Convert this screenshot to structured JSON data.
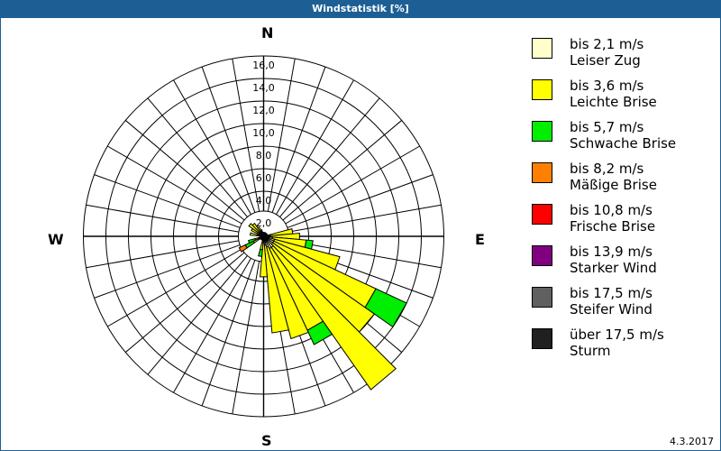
{
  "window": {
    "title": "Windstatistik [%]"
  },
  "footer": {
    "date": "4.3.2017"
  },
  "compass": {
    "north": "N",
    "east": "E",
    "south": "S",
    "west": "W"
  },
  "legend": [
    {
      "range": "bis 2,1 m/s",
      "name": "Leiser Zug",
      "color": "#ffffcc"
    },
    {
      "range": "bis 3,6 m/s",
      "name": "Leichte Brise",
      "color": "#ffff00"
    },
    {
      "range": "bis 5,7 m/s",
      "name": "Schwache Brise",
      "color": "#00ee00"
    },
    {
      "range": "bis 8,2 m/s",
      "name": "Mäßige Brise",
      "color": "#ff8000"
    },
    {
      "range": "bis 10,8 m/s",
      "name": "Frische Brise",
      "color": "#ff0000"
    },
    {
      "range": "bis 13,9 m/s",
      "name": "Starker Wind",
      "color": "#800080"
    },
    {
      "range": "bis 17,5 m/s",
      "name": "Steifer Wind",
      "color": "#606060"
    },
    {
      "range": "über 17,5 m/s",
      "name": "Sturm",
      "color": "#202020"
    }
  ],
  "chart_data": {
    "type": "windrose",
    "title": "Windstatistik [%]",
    "radial_ticks": [
      "2,0",
      "4,0",
      "6,0",
      "8,0",
      "10,0",
      "12,0",
      "14,0",
      "16,0"
    ],
    "rmax": 16,
    "sector_width_deg": 10,
    "speed_classes": [
      "bis 2,1 m/s",
      "bis 3,6 m/s",
      "bis 5,7 m/s",
      "bis 8,2 m/s",
      "bis 10,8 m/s",
      "bis 13,9 m/s",
      "bis 17,5 m/s",
      "über 17,5 m/s"
    ],
    "sectors": [
      {
        "dir": 80,
        "values": [
          0.6,
          2.0,
          0.0
        ]
      },
      {
        "dir": 90,
        "values": [
          0.6,
          2.6,
          0.0
        ]
      },
      {
        "dir": 100,
        "values": [
          0.8,
          3.0,
          0.6
        ]
      },
      {
        "dir": 110,
        "values": [
          1.0,
          6.0,
          0.0
        ]
      },
      {
        "dir": 120,
        "values": [
          1.0,
          10.0,
          3.0
        ]
      },
      {
        "dir": 130,
        "values": [
          1.0,
          11.0,
          0.0
        ]
      },
      {
        "dir": 140,
        "values": [
          1.2,
          15.4,
          0.0
        ]
      },
      {
        "dir": 150,
        "values": [
          1.2,
          8.0,
          1.4
        ]
      },
      {
        "dir": 160,
        "values": [
          1.0,
          8.4,
          0.0
        ]
      },
      {
        "dir": 170,
        "values": [
          0.8,
          7.8,
          0.0
        ]
      },
      {
        "dir": 180,
        "values": [
          0.6,
          3.0,
          0.0
        ]
      },
      {
        "dir": 190,
        "values": [
          0.4,
          0.8,
          0.6
        ]
      },
      {
        "dir": 240,
        "values": [
          0.4,
          0.6,
          0.8,
          0.6
        ]
      },
      {
        "dir": 250,
        "values": [
          0.3,
          0.5,
          0.6
        ]
      },
      {
        "dir": 280,
        "values": [
          0.6,
          0.6
        ]
      },
      {
        "dir": 300,
        "values": [
          0.4,
          0.8
        ]
      },
      {
        "dir": 310,
        "values": [
          0.4,
          1.2
        ]
      },
      {
        "dir": 320,
        "values": [
          0.4,
          1.0
        ]
      },
      {
        "dir": 330,
        "values": [
          0.3,
          0.6
        ]
      },
      {
        "dir": 340,
        "values": [
          0.2,
          0.4
        ]
      }
    ]
  }
}
